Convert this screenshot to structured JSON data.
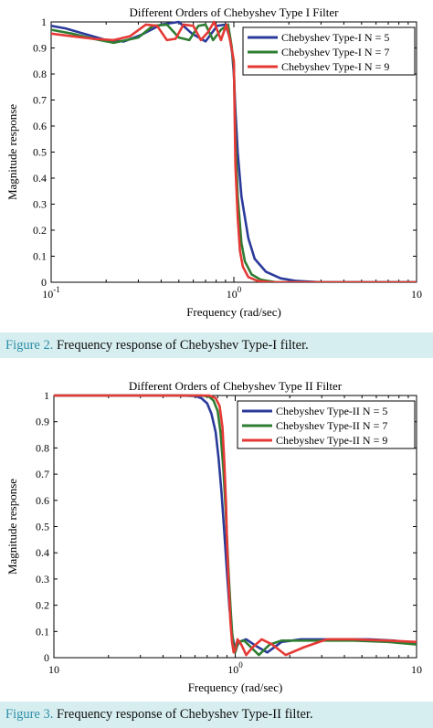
{
  "figure1": {
    "caption_label": "Figure 2.",
    "caption_text": " Frequency response of Chebyshev Type-I filter."
  },
  "figure2": {
    "caption_label": "Figure 3.",
    "caption_text": " Frequency response of Chebyshev Type-II filter."
  },
  "colors": {
    "n5": "#2b3a9a",
    "n7": "#2e7d32",
    "n9": "#e53935"
  },
  "chart_data": [
    {
      "type": "line",
      "title": "Different Orders of Chebyshev Type I Filter",
      "xlabel": "Frequency (rad/sec)",
      "ylabel": "Magnitude response",
      "xscale": "log",
      "xlim": [
        0.1,
        10
      ],
      "ylim": [
        0,
        1
      ],
      "xticks": [
        0.1,
        1,
        10
      ],
      "xtick_labels": [
        {
          "base": "10",
          "exp": "-1"
        },
        {
          "base": "10",
          "exp": "0"
        },
        {
          "base": "10",
          "exp": ""
        }
      ],
      "yticks": [
        0,
        0.1,
        0.2,
        0.3,
        0.4,
        0.5,
        0.6,
        0.7,
        0.8,
        0.9,
        1
      ],
      "ytick_labels": [
        "0",
        "0.1",
        "0.2",
        "0.3",
        "0.4",
        "0.5",
        "0.6",
        "0.7",
        "0.8",
        "0.9",
        "1"
      ],
      "legend_position": "top-right",
      "grid": false,
      "series": [
        {
          "name": "Chebyshev Type-I N = 5",
          "color": "#2b3a9a",
          "x": [
            0.1,
            0.12,
            0.15,
            0.2,
            0.25,
            0.31,
            0.4,
            0.5,
            0.59,
            0.7,
            0.81,
            0.9,
            0.95,
            0.98,
            1.0,
            1.02,
            1.05,
            1.1,
            1.2,
            1.3,
            1.5,
            1.8,
            2.2,
            3,
            5,
            10
          ],
          "y": [
            0.985,
            0.975,
            0.955,
            0.93,
            0.925,
            0.95,
            0.99,
            1.0,
            0.955,
            0.925,
            0.985,
            0.99,
            0.94,
            0.88,
            0.8,
            0.66,
            0.5,
            0.33,
            0.17,
            0.09,
            0.04,
            0.015,
            0.005,
            0,
            0,
            0
          ]
        },
        {
          "name": "Chebyshev Type-I N = 7",
          "color": "#2e7d32",
          "x": [
            0.1,
            0.13,
            0.17,
            0.22,
            0.3,
            0.36,
            0.43,
            0.5,
            0.57,
            0.64,
            0.7,
            0.77,
            0.85,
            0.93,
            0.97,
            1.0,
            1.02,
            1.05,
            1.1,
            1.15,
            1.25,
            1.4,
            1.7,
            2.2,
            3,
            10
          ],
          "y": [
            0.97,
            0.955,
            0.935,
            0.92,
            0.94,
            0.985,
            0.99,
            0.94,
            0.93,
            0.985,
            0.99,
            0.93,
            0.97,
            0.99,
            0.91,
            0.83,
            0.55,
            0.33,
            0.15,
            0.08,
            0.03,
            0.01,
            0,
            0,
            0,
            0
          ]
        },
        {
          "name": "Chebyshev Type-I N = 9",
          "color": "#e53935",
          "x": [
            0.1,
            0.13,
            0.17,
            0.22,
            0.27,
            0.33,
            0.38,
            0.43,
            0.48,
            0.53,
            0.6,
            0.66,
            0.72,
            0.78,
            0.85,
            0.91,
            0.96,
            1.0,
            1.02,
            1.05,
            1.08,
            1.12,
            1.2,
            1.35,
            1.6,
            2,
            10
          ],
          "y": [
            0.955,
            0.945,
            0.935,
            0.93,
            0.945,
            0.99,
            0.985,
            0.93,
            0.935,
            0.99,
            0.985,
            0.93,
            0.96,
            1.0,
            0.93,
            0.99,
            0.92,
            0.85,
            0.45,
            0.25,
            0.12,
            0.06,
            0.02,
            0.005,
            0,
            0,
            0
          ]
        }
      ]
    },
    {
      "type": "line",
      "title": "Different Orders of Chebyshev Type II Filter",
      "xlabel": "Frequency (rad/sec)",
      "ylabel": "Magnitude response",
      "xscale": "log",
      "xlim": [
        0.1,
        10
      ],
      "ylim": [
        0,
        1
      ],
      "xticks": [
        0.1,
        1,
        10
      ],
      "xtick_labels": [
        {
          "base": "10",
          "exp": ""
        },
        {
          "base": "10",
          "exp": "0"
        },
        {
          "base": "10",
          "exp": ""
        }
      ],
      "yticks": [
        0,
        0.1,
        0.2,
        0.3,
        0.4,
        0.5,
        0.6,
        0.7,
        0.8,
        0.9,
        1
      ],
      "ytick_labels": [
        "0",
        "0.1",
        "0.2",
        "0.3",
        "0.4",
        "0.5",
        "0.6",
        "0.7",
        "0.8",
        "0.9",
        "1"
      ],
      "legend_position": "top-right",
      "grid": false,
      "series": [
        {
          "name": "Chebyshev Type-II N = 5",
          "color": "#2b3a9a",
          "x": [
            0.1,
            0.3,
            0.5,
            0.6,
            0.65,
            0.7,
            0.74,
            0.78,
            0.81,
            0.84,
            0.87,
            0.9,
            0.93,
            0.96,
            1.0,
            1.05,
            1.15,
            1.3,
            1.5,
            1.8,
            2.3,
            3,
            4,
            5.5,
            7.5,
            10
          ],
          "y": [
            1,
            1,
            1,
            0.998,
            0.99,
            0.97,
            0.93,
            0.86,
            0.76,
            0.63,
            0.48,
            0.33,
            0.19,
            0.09,
            0.03,
            0.06,
            0.07,
            0.045,
            0.02,
            0.06,
            0.07,
            0.07,
            0.07,
            0.07,
            0.065,
            0.055
          ]
        },
        {
          "name": "Chebyshev Type-II N = 7",
          "color": "#2e7d32",
          "x": [
            0.1,
            0.4,
            0.65,
            0.72,
            0.76,
            0.8,
            0.83,
            0.86,
            0.88,
            0.9,
            0.92,
            0.94,
            0.96,
            0.98,
            1.0,
            1.04,
            1.12,
            1.22,
            1.35,
            1.55,
            1.8,
            2.2,
            3,
            4.5,
            7,
            10
          ],
          "y": [
            1,
            1,
            1,
            0.995,
            0.98,
            0.94,
            0.86,
            0.72,
            0.6,
            0.46,
            0.32,
            0.2,
            0.1,
            0.04,
            0.02,
            0.06,
            0.065,
            0.04,
            0.01,
            0.05,
            0.065,
            0.065,
            0.065,
            0.065,
            0.06,
            0.05
          ]
        },
        {
          "name": "Chebyshev Type-II N = 9",
          "color": "#e53935",
          "x": [
            0.1,
            0.5,
            0.72,
            0.78,
            0.82,
            0.85,
            0.87,
            0.89,
            0.9,
            0.92,
            0.94,
            0.96,
            0.98,
            1.0,
            1.03,
            1.08,
            1.15,
            1.25,
            1.4,
            1.6,
            1.9,
            2.4,
            3.2,
            4.5,
            7,
            10
          ],
          "y": [
            1,
            1,
            1,
            0.99,
            0.96,
            0.88,
            0.75,
            0.58,
            0.45,
            0.28,
            0.14,
            0.06,
            0.02,
            0.03,
            0.07,
            0.05,
            0.01,
            0.04,
            0.07,
            0.05,
            0.01,
            0.04,
            0.07,
            0.07,
            0.065,
            0.06
          ]
        }
      ]
    }
  ]
}
